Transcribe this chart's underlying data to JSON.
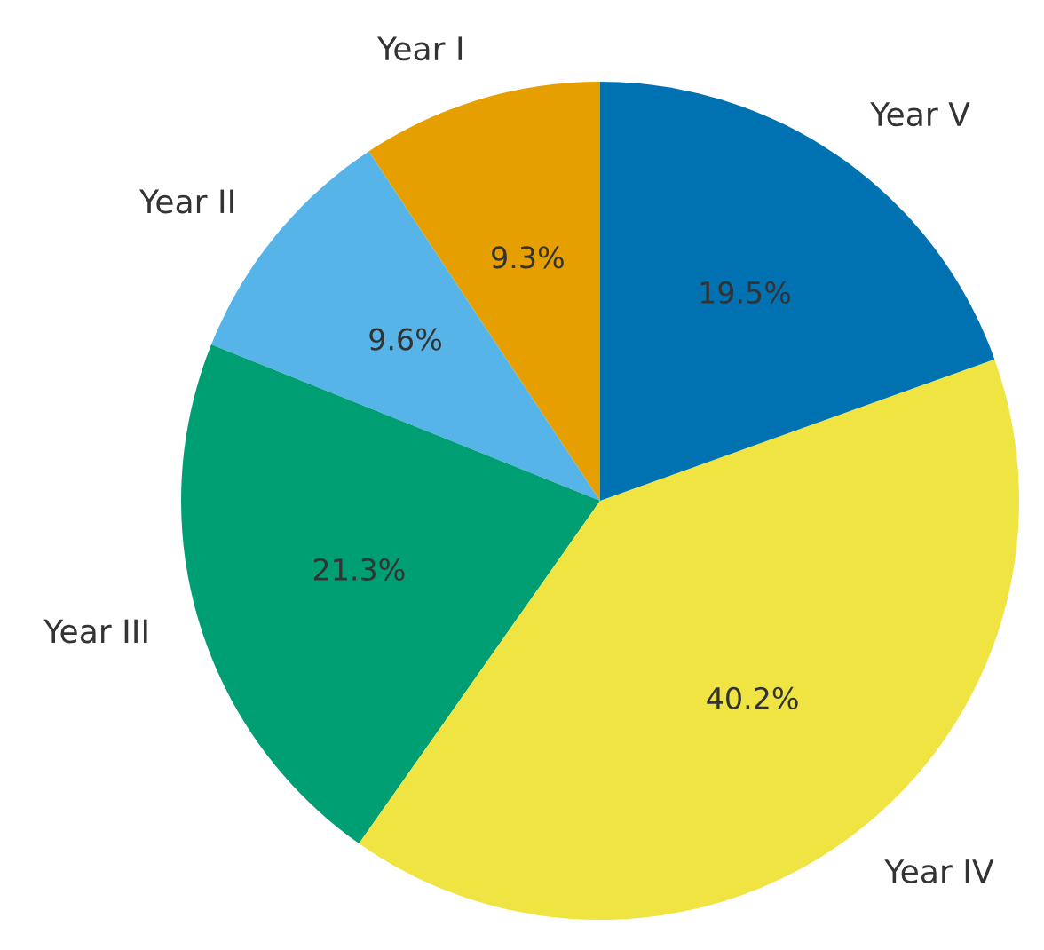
{
  "chart_data": {
    "type": "pie",
    "categories": [
      "Year I",
      "Year II",
      "Year III",
      "Year IV",
      "Year V"
    ],
    "values": [
      9.3,
      9.6,
      21.3,
      40.2,
      19.5
    ],
    "colors": [
      "#e69f00",
      "#56b4e9",
      "#009e73",
      "#f0e442",
      "#0072b2"
    ],
    "value_labels": [
      "9.3%",
      "9.6%",
      "21.3%",
      "40.2%",
      "19.5%"
    ]
  }
}
